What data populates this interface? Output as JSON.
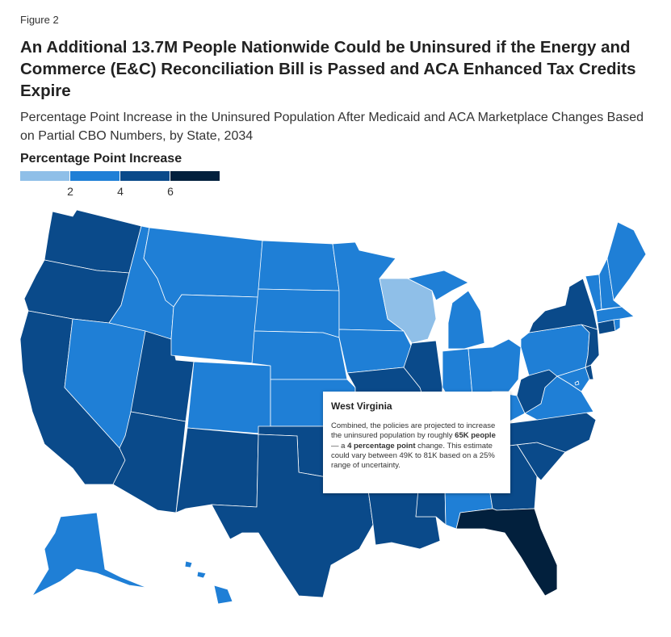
{
  "figure_label": "Figure 2",
  "title": "An Additional 13.7M People Nationwide Could be Uninsured if the Energy and Commerce (E&C) Reconciliation Bill is Passed and ACA Enhanced Tax Credits Expire",
  "subtitle": "Percentage Point Increase in the Uninsured Population After Medicaid and ACA Marketplace Changes Based on Partial CBO Numbers, by State, 2034",
  "legend": {
    "title": "Percentage Point Increase",
    "colors": [
      "#8fbfe8",
      "#1f7fd6",
      "#0a4a8a",
      "#02203d"
    ],
    "ticks": [
      "2",
      "4",
      "6"
    ]
  },
  "colors": {
    "light": "#8fbfe8",
    "mid": "#1f7fd6",
    "dark": "#0a4a8a",
    "darkest": "#02203d"
  },
  "tooltip": {
    "state": "West Virginia",
    "text_1": "Combined, the policies are projected to increase the uninsured population by roughly ",
    "text_bold_1": "65K people",
    "text_2": " — a ",
    "text_bold_2": "4 percentage point",
    "text_3": " change. This estimate could vary between 49K to 81K based on a 25% range of uncertainty."
  },
  "states": [
    {
      "id": "WA",
      "bin": "dark"
    },
    {
      "id": "OR",
      "bin": "dark"
    },
    {
      "id": "CA",
      "bin": "dark"
    },
    {
      "id": "ID",
      "bin": "mid"
    },
    {
      "id": "NV",
      "bin": "mid"
    },
    {
      "id": "UT",
      "bin": "dark"
    },
    {
      "id": "AZ",
      "bin": "dark"
    },
    {
      "id": "MT",
      "bin": "mid"
    },
    {
      "id": "WY",
      "bin": "mid"
    },
    {
      "id": "CO",
      "bin": "mid"
    },
    {
      "id": "NM",
      "bin": "dark"
    },
    {
      "id": "ND",
      "bin": "mid"
    },
    {
      "id": "SD",
      "bin": "mid"
    },
    {
      "id": "NE",
      "bin": "mid"
    },
    {
      "id": "KS",
      "bin": "mid"
    },
    {
      "id": "OK",
      "bin": "dark"
    },
    {
      "id": "TX",
      "bin": "dark"
    },
    {
      "id": "MN",
      "bin": "mid"
    },
    {
      "id": "IA",
      "bin": "mid"
    },
    {
      "id": "MO",
      "bin": "dark"
    },
    {
      "id": "AR",
      "bin": "dark"
    },
    {
      "id": "LA",
      "bin": "dark"
    },
    {
      "id": "WI",
      "bin": "light"
    },
    {
      "id": "IL",
      "bin": "dark"
    },
    {
      "id": "MS",
      "bin": "dark"
    },
    {
      "id": "MI",
      "bin": "mid"
    },
    {
      "id": "IN",
      "bin": "mid"
    },
    {
      "id": "KY",
      "bin": "mid"
    },
    {
      "id": "TN",
      "bin": "dark"
    },
    {
      "id": "AL",
      "bin": "mid"
    },
    {
      "id": "OH",
      "bin": "mid"
    },
    {
      "id": "WV",
      "bin": "dark"
    },
    {
      "id": "GA",
      "bin": "dark"
    },
    {
      "id": "FL",
      "bin": "darkest"
    },
    {
      "id": "SC",
      "bin": "dark"
    },
    {
      "id": "NC",
      "bin": "dark"
    },
    {
      "id": "VA",
      "bin": "mid"
    },
    {
      "id": "PA",
      "bin": "mid"
    },
    {
      "id": "NY",
      "bin": "dark"
    },
    {
      "id": "ME",
      "bin": "mid"
    },
    {
      "id": "VT",
      "bin": "mid"
    },
    {
      "id": "NH",
      "bin": "mid"
    },
    {
      "id": "MA",
      "bin": "mid"
    },
    {
      "id": "RI",
      "bin": "mid"
    },
    {
      "id": "CT",
      "bin": "dark"
    },
    {
      "id": "NJ",
      "bin": "dark"
    },
    {
      "id": "DE",
      "bin": "dark"
    },
    {
      "id": "MD",
      "bin": "mid"
    },
    {
      "id": "DC",
      "bin": "mid"
    },
    {
      "id": "AK",
      "bin": "mid"
    },
    {
      "id": "HI",
      "bin": "mid"
    }
  ]
}
